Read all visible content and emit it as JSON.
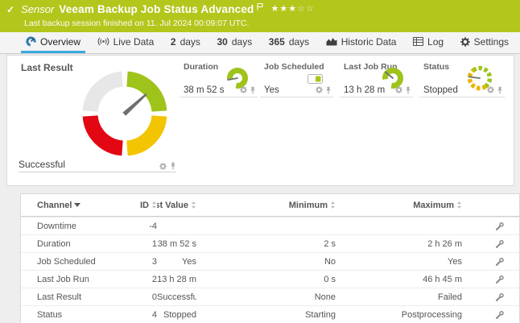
{
  "header": {
    "kind_label": "Sensor",
    "title": "Veeam Backup Job Status Advanced",
    "subtitle": "Last backup session finished on 11. Jul 2024 00:09:07 UTC.",
    "priority_filled": 3,
    "priority_total": 5
  },
  "tabs": [
    {
      "id": "overview",
      "icon": "gauge-icon",
      "label": "Overview",
      "active": true
    },
    {
      "id": "live-data",
      "icon": "live-data-icon",
      "label": "Live Data",
      "active": false
    },
    {
      "id": "2-days",
      "num": "2",
      "label": "days",
      "active": false
    },
    {
      "id": "30-days",
      "num": "30",
      "label": "days",
      "active": false
    },
    {
      "id": "365-days",
      "num": "365",
      "label": "days",
      "active": false
    },
    {
      "id": "historic-data",
      "icon": "historic-data-icon",
      "label": "Historic Data",
      "active": false
    },
    {
      "id": "log",
      "icon": "log-icon",
      "label": "Log",
      "active": false
    },
    {
      "id": "settings",
      "icon": "gear-icon",
      "label": "Settings",
      "active": false
    }
  ],
  "overview": {
    "main_gauge": {
      "label": "Last Result",
      "value": "Successful",
      "needle_deg": -42
    },
    "mini_gauges": [
      {
        "name": "duration",
        "label": "Duration",
        "value": "38 m 52 s",
        "indicator": "arc-gauge",
        "needle_deg": 170
      },
      {
        "name": "job-scheduled",
        "label": "Job Scheduled",
        "value": "Yes",
        "indicator": "toggle-on"
      },
      {
        "name": "last-job-run",
        "label": "Last Job Run",
        "value": "13 h 28 m",
        "indicator": "arc-gauge",
        "needle_deg": 220
      },
      {
        "name": "status",
        "label": "Status",
        "value": "Stopped",
        "indicator": "segmented-gauge",
        "needle_deg": 187
      }
    ]
  },
  "channel_table": {
    "columns": [
      {
        "key": "channel",
        "label": "Channel",
        "sorted": true
      },
      {
        "key": "id",
        "label": "ID",
        "sorted": false
      },
      {
        "key": "last",
        "label": "Last Value",
        "sorted": false
      },
      {
        "key": "min",
        "label": "Minimum",
        "sorted": false
      },
      {
        "key": "max",
        "label": "Maximum",
        "sorted": false
      }
    ],
    "rows": [
      {
        "channel": "Downtime",
        "id": "-4",
        "last": "",
        "min": "",
        "max": ""
      },
      {
        "channel": "Duration",
        "id": "1",
        "last": "38 m 52 s",
        "min": "2 s",
        "max": "2 h 26 m"
      },
      {
        "channel": "Job Scheduled",
        "id": "3",
        "last": "Yes",
        "min": "No",
        "max": "Yes"
      },
      {
        "channel": "Last Job Run",
        "id": "2",
        "last": "13 h 28 m",
        "min": "0 s",
        "max": "46 h 45 m"
      },
      {
        "channel": "Last Result",
        "id": "0",
        "last": "Successful",
        "min": "None",
        "max": "Failed"
      },
      {
        "channel": "Status",
        "id": "4",
        "last": "Stopped",
        "min": "Starting",
        "max": "Postprocessing"
      }
    ]
  },
  "colors": {
    "brand_green": "#b3c61c",
    "accent_blue": "#3aa9e0",
    "gauge_green": "#9ec41c",
    "gauge_yellow": "#f2c500",
    "gauge_red": "#e30613",
    "gauge_gray": "#e7e7e7",
    "needle_gray": "#6f6f6f",
    "toggle_green": "#a6c71c",
    "seg_yellow": "#e9b400",
    "icon_gray": "#a9a9a9"
  }
}
